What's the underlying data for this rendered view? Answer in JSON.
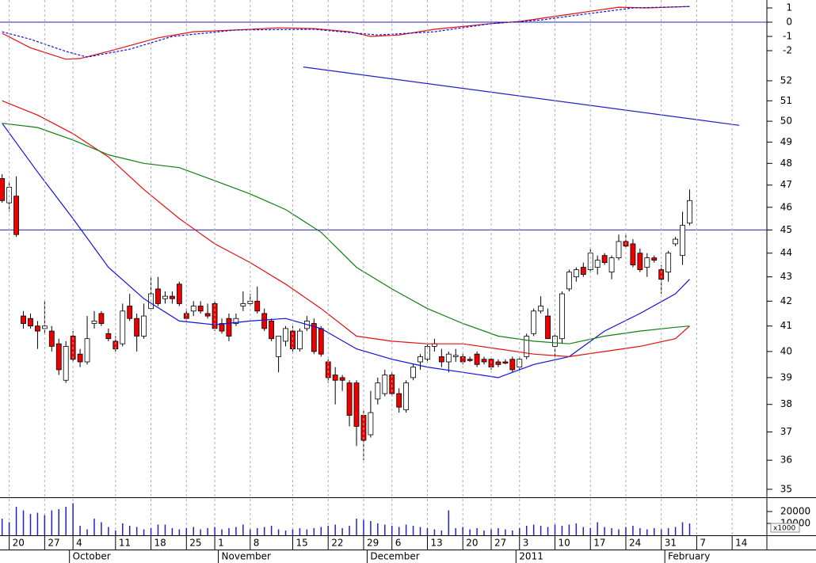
{
  "chart_data": [
    {
      "type": "candlestick",
      "log_scale": true,
      "xlim": [
        -0.3,
        107.9
      ],
      "ylim": [
        34.73,
        52.28
      ],
      "yticks": [
        35,
        36,
        37,
        38,
        39,
        40,
        41,
        42,
        43,
        44,
        45,
        46,
        47,
        48,
        49,
        50,
        51,
        52
      ],
      "up_color": "#ffffff",
      "down_color": "#ee0000",
      "hlines": [
        45
      ],
      "hline_color": "#2020c0",
      "open": [
        47.3,
        46.2,
        46.5,
        41.4,
        41.3,
        41.0,
        40.9,
        40.8,
        40.3,
        38.9,
        40.6,
        39.9,
        39.6,
        41.1,
        41.5,
        40.7,
        40.4,
        40.3,
        41.8,
        41.3,
        40.6,
        41.7,
        42.5,
        42.1,
        42.2,
        42.7,
        41.5,
        41.6,
        41.8,
        41.5,
        41.9,
        41.1,
        41.3,
        41.1,
        41.8,
        41.9,
        42.0,
        41.5,
        41.2,
        39.8,
        40.4,
        40.8,
        40.1,
        40.9,
        41.1,
        40.9,
        39.6,
        39.1,
        39.0,
        38.8,
        38.8,
        37.6,
        36.9,
        38.2,
        38.4,
        39.1,
        38.4,
        37.8,
        39.0,
        39.6,
        39.7,
        40.2,
        39.8,
        39.6,
        39.8,
        39.8,
        39.7,
        39.9,
        39.7,
        39.7,
        39.6,
        39.6,
        39.7,
        39.4,
        39.8,
        40.7,
        41.6,
        41.4,
        40.2,
        40.5,
        42.5,
        43.0,
        43.4,
        43.3,
        43.4,
        43.9,
        43.2,
        43.8,
        44.5,
        44.4,
        44.0,
        43.4,
        43.8,
        43.3,
        43.2,
        44.4,
        43.9,
        45.3
      ],
      "high": [
        47.5,
        47.1,
        47.4,
        41.6,
        41.5,
        41.2,
        42.0,
        41.0,
        40.5,
        40.4,
        40.8,
        40.1,
        41.4,
        41.6,
        41.6,
        40.9,
        40.6,
        41.9,
        42.3,
        41.5,
        41.9,
        43.0,
        43.0,
        42.4,
        42.4,
        42.8,
        41.7,
        42.0,
        42.0,
        41.9,
        42.0,
        41.3,
        41.5,
        41.5,
        42.4,
        42.3,
        42.6,
        41.7,
        41.3,
        40.6,
        41.0,
        41.0,
        40.9,
        41.4,
        41.3,
        41.0,
        39.7,
        39.4,
        39.1,
        38.9,
        38.9,
        37.8,
        38.5,
        39.0,
        39.3,
        39.2,
        38.6,
        38.9,
        39.5,
        39.9,
        40.3,
        40.5,
        40.1,
        40.0,
        40.1,
        39.9,
        39.8,
        40.0,
        39.8,
        39.8,
        39.7,
        39.7,
        39.8,
        39.8,
        40.7,
        41.7,
        42.2,
        41.7,
        40.7,
        42.4,
        43.3,
        43.4,
        43.6,
        44.2,
        43.9,
        44.0,
        43.9,
        44.8,
        44.8,
        44.6,
        44.2,
        44.0,
        43.9,
        43.5,
        44.1,
        44.7,
        45.8,
        46.8
      ],
      "low": [
        46.2,
        45.8,
        44.7,
        40.9,
        40.9,
        40.1,
        40.7,
        40.0,
        39.1,
        38.8,
        39.6,
        39.4,
        39.5,
        40.9,
        41.0,
        40.4,
        40.0,
        40.2,
        41.2,
        40.0,
        40.5,
        41.6,
        41.8,
        41.9,
        41.9,
        41.8,
        41.2,
        41.4,
        41.5,
        41.3,
        40.8,
        40.7,
        40.4,
        41.0,
        41.6,
        41.8,
        41.5,
        40.8,
        40.4,
        39.2,
        40.2,
        40.0,
        40.0,
        40.8,
        39.9,
        39.8,
        38.8,
        38.0,
        38.5,
        37.2,
        36.5,
        36.0,
        36.8,
        38.0,
        38.3,
        38.3,
        37.7,
        37.7,
        38.9,
        39.3,
        39.6,
        40.0,
        39.4,
        39.2,
        39.6,
        39.5,
        39.6,
        39.4,
        39.5,
        39.3,
        39.4,
        39.5,
        39.2,
        39.3,
        39.7,
        40.6,
        41.5,
        40.5,
        39.8,
        40.3,
        42.4,
        42.8,
        43.0,
        43.2,
        43.1,
        43.5,
        42.9,
        43.7,
        44.2,
        43.4,
        43.2,
        43.0,
        43.6,
        42.3,
        42.8,
        44.3,
        43.5,
        45.2
      ],
      "close": [
        46.3,
        46.9,
        44.8,
        41.1,
        41.0,
        40.8,
        41.0,
        40.2,
        39.3,
        40.2,
        39.7,
        39.6,
        40.5,
        41.2,
        41.1,
        40.5,
        40.1,
        41.6,
        41.3,
        40.6,
        41.4,
        42.3,
        41.9,
        42.2,
        42.1,
        41.9,
        41.3,
        41.8,
        41.6,
        41.4,
        40.9,
        40.8,
        40.6,
        41.3,
        41.9,
        42.0,
        41.6,
        40.9,
        40.5,
        40.6,
        40.9,
        40.1,
        40.8,
        41.2,
        40.0,
        39.9,
        39.0,
        38.9,
        38.9,
        37.6,
        37.2,
        36.7,
        37.7,
        38.8,
        39.1,
        38.4,
        37.9,
        38.8,
        39.4,
        39.8,
        40.2,
        40.3,
        39.6,
        39.9,
        39.85,
        39.6,
        39.65,
        39.5,
        39.6,
        39.4,
        39.5,
        39.55,
        39.3,
        39.7,
        40.6,
        41.6,
        41.8,
        40.5,
        40.6,
        42.3,
        43.2,
        43.3,
        43.1,
        44.0,
        43.7,
        43.6,
        43.8,
        44.5,
        44.3,
        43.5,
        43.3,
        43.8,
        43.7,
        42.9,
        44.0,
        44.6,
        45.2,
        46.3
      ],
      "series": [
        {
          "color": "#1010e0",
          "x": [
            0,
            5,
            10,
            15,
            20,
            25,
            30,
            35,
            40,
            45,
            50,
            55,
            60,
            65,
            70,
            75,
            80,
            85,
            90,
            95,
            97
          ],
          "values": [
            49.9,
            47.6,
            45.5,
            43.4,
            42.1,
            41.2,
            41.05,
            41.2,
            41.3,
            40.9,
            40.1,
            39.7,
            39.4,
            39.2,
            39.0,
            39.5,
            39.8,
            40.8,
            41.5,
            42.3,
            42.9
          ]
        },
        {
          "color": "#e01010",
          "x": [
            0,
            5,
            10,
            15,
            20,
            25,
            30,
            35,
            40,
            45,
            50,
            55,
            60,
            65,
            70,
            75,
            80,
            85,
            90,
            95,
            97
          ],
          "values": [
            51.0,
            50.3,
            49.4,
            48.3,
            46.8,
            45.5,
            44.4,
            43.6,
            42.7,
            41.7,
            40.6,
            40.4,
            40.3,
            40.3,
            40.1,
            39.9,
            39.8,
            40.0,
            40.2,
            40.5,
            41.0
          ]
        },
        {
          "color": "#108010",
          "x": [
            0,
            5,
            10,
            15,
            20,
            25,
            30,
            35,
            40,
            45,
            50,
            55,
            60,
            65,
            70,
            75,
            80,
            85,
            90,
            95,
            97
          ],
          "values": [
            49.9,
            49.7,
            49.1,
            48.4,
            48.0,
            47.8,
            47.2,
            46.6,
            45.9,
            44.9,
            43.4,
            42.5,
            41.7,
            41.1,
            40.6,
            40.4,
            40.3,
            40.6,
            40.8,
            40.95,
            41.0
          ]
        },
        {
          "color": "#2020c0",
          "x": [
            42.5,
            104
          ],
          "values": [
            52.7,
            49.8
          ]
        }
      ]
    },
    {
      "type": "line",
      "xlim": [
        -0.3,
        107.9
      ],
      "ylim": [
        -3.5,
        1.5
      ],
      "yticks": [
        -2,
        -1,
        0,
        1
      ],
      "hlines": [
        0
      ],
      "hline_color": "#2020c0",
      "series": [
        {
          "color": "#e01010",
          "x": [
            0,
            4,
            9,
            11,
            15,
            22,
            27,
            33,
            39,
            44,
            49,
            52,
            56,
            61,
            69,
            73,
            80,
            87,
            91,
            97
          ],
          "values": [
            -0.78,
            -1.8,
            -2.6,
            -2.55,
            -2.05,
            -1.1,
            -0.67,
            -0.55,
            -0.4,
            -0.45,
            -0.67,
            -1.0,
            -0.9,
            -0.5,
            -0.1,
            0.05,
            0.55,
            1.05,
            1.0,
            1.1
          ]
        },
        {
          "color": "#1010e0",
          "dash": true,
          "x": [
            0,
            4,
            9,
            12,
            18,
            24,
            33,
            44,
            53,
            61,
            69,
            76,
            82,
            89,
            97
          ],
          "values": [
            -0.67,
            -1.2,
            -2.05,
            -2.45,
            -1.9,
            -1.0,
            -0.55,
            -0.5,
            -0.9,
            -0.67,
            -0.1,
            0.15,
            0.55,
            1.0,
            1.1
          ]
        }
      ]
    },
    {
      "type": "bar",
      "xlim": [
        -0.3,
        107.9
      ],
      "ylim": [
        0,
        30000
      ],
      "yticks": [
        10000,
        20000
      ],
      "y_unit": "x1000",
      "color": "#2020d0",
      "values": [
        14000,
        11000,
        24000,
        21000,
        18000,
        19000,
        17000,
        21000,
        22000,
        24000,
        27000,
        8000,
        5000,
        14000,
        11000,
        7000,
        4000,
        10000,
        8000,
        7000,
        5000,
        6000,
        9000,
        9000,
        6000,
        5000,
        6000,
        7000,
        5000,
        6000,
        7000,
        5000,
        6000,
        7000,
        9000,
        5000,
        6000,
        7000,
        8000,
        5000,
        4000,
        5000,
        6000,
        5000,
        6000,
        7000,
        8000,
        9000,
        6000,
        8000,
        14000,
        13000,
        12000,
        10000,
        9000,
        8000,
        7000,
        9000,
        8000,
        7000,
        6000,
        5000,
        4000,
        21000,
        6000,
        7000,
        5000,
        6000,
        4000,
        5000,
        6000,
        5000,
        4000,
        6000,
        8000,
        9000,
        8000,
        7000,
        9000,
        8000,
        9000,
        10000,
        7000,
        6000,
        11000,
        7000,
        6000,
        5000,
        7000,
        8000,
        6000,
        5000,
        6000,
        5000,
        6000,
        7000,
        11000,
        10000
      ],
      "xticks": [
        {
          "value": 1,
          "label": "20"
        },
        {
          "value": 6,
          "label": "27"
        },
        {
          "value": 10,
          "label": "4"
        },
        {
          "value": 16,
          "label": "11"
        },
        {
          "value": 21,
          "label": "18"
        },
        {
          "value": 26,
          "label": "25"
        },
        {
          "value": 30,
          "label": "1"
        },
        {
          "value": 35,
          "label": "8"
        },
        {
          "value": 41,
          "label": "15"
        },
        {
          "value": 46,
          "label": "22"
        },
        {
          "value": 51,
          "label": "29"
        },
        {
          "value": 55,
          "label": "6"
        },
        {
          "value": 60,
          "label": "13"
        },
        {
          "value": 65,
          "label": "20"
        },
        {
          "value": 69,
          "label": "27"
        },
        {
          "value": 73,
          "label": "3"
        },
        {
          "value": 78,
          "label": "10"
        },
        {
          "value": 83,
          "label": "17"
        },
        {
          "value": 88,
          "label": "24"
        },
        {
          "value": 93,
          "label": "31"
        },
        {
          "value": 98,
          "label": "7"
        },
        {
          "value": 103,
          "label": "14"
        }
      ],
      "month_ticks": [
        {
          "value": 9.5,
          "label": "October"
        },
        {
          "value": 30.5,
          "label": "November"
        },
        {
          "value": 51.5,
          "label": "December"
        },
        {
          "value": 72.5,
          "label": "2011"
        },
        {
          "value": 93.5,
          "label": "February"
        }
      ]
    }
  ]
}
